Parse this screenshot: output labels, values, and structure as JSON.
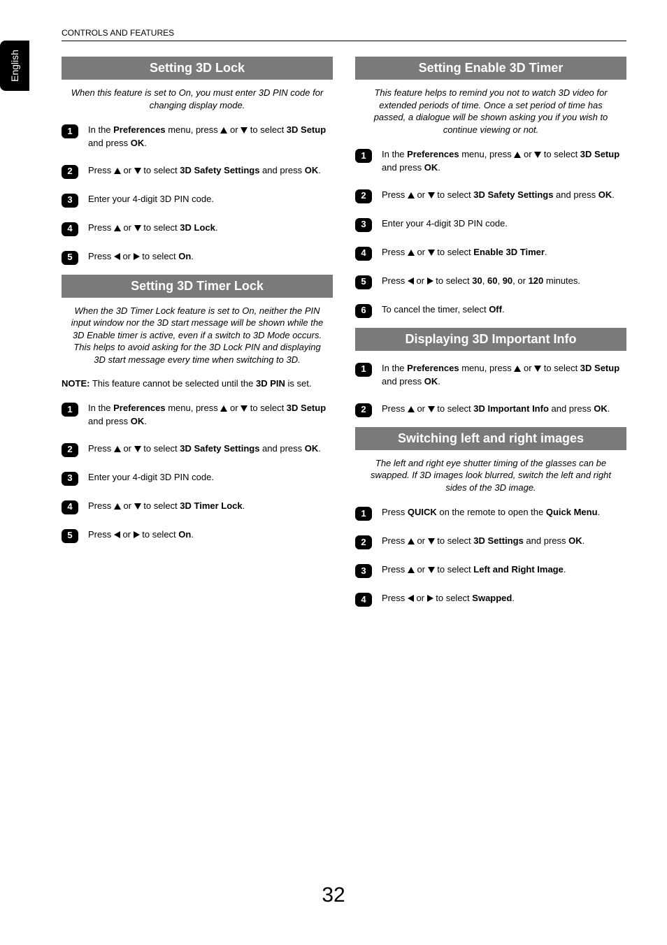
{
  "vtab_label": "English",
  "header_line": "CONTROLS AND FEATURES",
  "page_number": "32",
  "glyphs": {
    "up": "▲",
    "down": "▼",
    "left": "◀",
    "right": "▶"
  },
  "left": {
    "sec1": {
      "title": "Setting 3D Lock",
      "intro": "When this feature is set to On, you must enter 3D PIN code for changing display mode.",
      "steps": [
        {
          "n": "1",
          "html": "In the <b>Preferences</b> menu, press {UP} or {DN} to select <b>3D Setup</b> and press <b>OK</b>."
        },
        {
          "n": "2",
          "html": "Press {UP} or {DN} to select <b>3D Safety Settings</b> and press <b>OK</b>."
        },
        {
          "n": "3",
          "html": "Enter your 4-digit 3D PIN code."
        },
        {
          "n": "4",
          "html": "Press {UP} or {DN} to select <b>3D Lock</b>."
        },
        {
          "n": "5",
          "html": "Press {LT} or {RT} to select <b>On</b>."
        }
      ]
    },
    "sec2": {
      "title": "Setting 3D Timer Lock",
      "intro": "When the 3D Timer Lock feature is set to On, neither the PIN input window nor the 3D start message will be shown while the 3D Enable timer is active, even if a switch to 3D Mode occurs. This helps to avoid asking for the 3D Lock PIN and displaying 3D start message every time when switching to 3D.",
      "note_prefix": "NOTE:",
      "note_body": " This feature cannot be selected until the ",
      "note_bold": "3D PIN",
      "note_tail": " is set.",
      "steps": [
        {
          "n": "1",
          "html": "In the <b>Preferences</b> menu, press {UP} or {DN} to select <b>3D Setup</b> and press <b>OK</b>."
        },
        {
          "n": "2",
          "html": "Press {UP} or {DN} to select <b>3D Safety Settings</b> and press <b>OK</b>."
        },
        {
          "n": "3",
          "html": "Enter your 4-digit 3D PIN code."
        },
        {
          "n": "4",
          "html": "Press {UP} or {DN} to select <b>3D Timer Lock</b>."
        },
        {
          "n": "5",
          "html": "Press {LT} or {RT} to select <b>On</b>."
        }
      ]
    }
  },
  "right": {
    "sec1": {
      "title": "Setting Enable 3D Timer",
      "intro": "This feature helps to remind you not to watch 3D video for extended periods of time. Once a set period of time has passed, a dialogue will be shown asking you if you wish to continue viewing or not.",
      "steps": [
        {
          "n": "1",
          "html": "In the <b>Preferences</b> menu, press {UP} or {DN} to select <b>3D Setup</b> and press <b>OK</b>."
        },
        {
          "n": "2",
          "html": "Press {UP} or {DN} to select <b>3D Safety Settings</b> and press <b>OK</b>."
        },
        {
          "n": "3",
          "html": "Enter your 4-digit 3D PIN code."
        },
        {
          "n": "4",
          "html": "Press {UP} or {DN} to select <b>Enable 3D Timer</b>."
        },
        {
          "n": "5",
          "html": "Press {LT} or {RT} to select <b>30</b>, <b>60</b>, <b>90</b>, or <b>120</b> minutes."
        },
        {
          "n": "6",
          "html": "To cancel the timer, select <b>Off</b>."
        }
      ]
    },
    "sec2": {
      "title": "Displaying 3D Important Info",
      "steps": [
        {
          "n": "1",
          "html": "In the <b>Preferences</b> menu, press {UP} or {DN} to select <b>3D Setup</b> and press <b>OK</b>."
        },
        {
          "n": "2",
          "html": "Press {UP} or {DN} to select <b>3D Important Info</b> and press <b>OK</b>."
        }
      ]
    },
    "sec3": {
      "title": "Switching left and right images",
      "intro": "The left and right eye shutter timing of the glasses can be swapped. If 3D images look blurred, switch the left and right sides of the 3D image.",
      "steps": [
        {
          "n": "1",
          "html": "Press <b>QUICK</b> on the remote to open the <b>Quick Menu</b>."
        },
        {
          "n": "2",
          "html": "Press {UP} or {DN} to select <b>3D Settings</b> and press <b>OK</b>."
        },
        {
          "n": "3",
          "html": "Press {UP} or {DN} to select <b>Left and Right Image</b>."
        },
        {
          "n": "4",
          "html": "Press {LT} or {RT} to select <b>Swapped</b>."
        }
      ]
    }
  }
}
